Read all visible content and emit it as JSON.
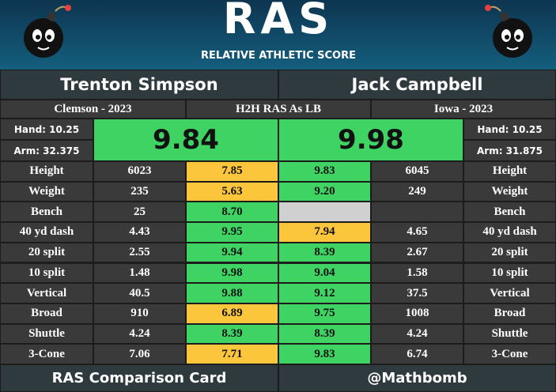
{
  "header": {
    "title": "RAS",
    "subtitle": "RELATIVE ATHLETIC SCORE"
  },
  "left": {
    "name": "Trenton Simpson",
    "school": "Clemson - 2023",
    "hand": "Hand: 10.25",
    "arm": "Arm: 32.375",
    "ras": "9.84"
  },
  "right": {
    "name": "Jack Campbell",
    "school": "Iowa - 2023",
    "hand": "Hand: 10.25",
    "arm": "Arm: 31.875",
    "ras": "9.98"
  },
  "center_label": "H2H RAS As LB",
  "colors": {
    "good": "#3fd364",
    "fair": "#fcc63c",
    "missing": "#d0d0d0"
  },
  "rows": [
    {
      "metric": "Height",
      "left_value": "6023",
      "left_score": "7.85",
      "left_grade": "fair",
      "right_score": "9.83",
      "right_grade": "good",
      "right_value": "6045"
    },
    {
      "metric": "Weight",
      "left_value": "235",
      "left_score": "5.63",
      "left_grade": "fair",
      "right_score": "9.20",
      "right_grade": "good",
      "right_value": "249"
    },
    {
      "metric": "Bench",
      "left_value": "25",
      "left_score": "8.70",
      "left_grade": "good",
      "right_score": null,
      "right_grade": "missing",
      "right_value": null
    },
    {
      "metric": "40 yd dash",
      "left_value": "4.43",
      "left_score": "9.95",
      "left_grade": "good",
      "right_score": "7.94",
      "right_grade": "fair",
      "right_value": "4.65"
    },
    {
      "metric": "20 split",
      "left_value": "2.55",
      "left_score": "9.94",
      "left_grade": "good",
      "right_score": "8.39",
      "right_grade": "good",
      "right_value": "2.67"
    },
    {
      "metric": "10 split",
      "left_value": "1.48",
      "left_score": "9.98",
      "left_grade": "good",
      "right_score": "9.04",
      "right_grade": "good",
      "right_value": "1.58"
    },
    {
      "metric": "Vertical",
      "left_value": "40.5",
      "left_score": "9.88",
      "left_grade": "good",
      "right_score": "9.12",
      "right_grade": "good",
      "right_value": "37.5"
    },
    {
      "metric": "Broad",
      "left_value": "910",
      "left_score": "6.89",
      "left_grade": "fair",
      "right_score": "9.75",
      "right_grade": "good",
      "right_value": "1008"
    },
    {
      "metric": "Shuttle",
      "left_value": "4.24",
      "left_score": "8.39",
      "left_grade": "good",
      "right_score": "8.39",
      "right_grade": "good",
      "right_value": "4.24"
    },
    {
      "metric": "3-Cone",
      "left_value": "7.06",
      "left_score": "7.71",
      "left_grade": "fair",
      "right_score": "9.83",
      "right_grade": "good",
      "right_value": "6.74"
    }
  ],
  "footer": {
    "left": "RAS Comparison Card",
    "right": "@Mathbomb"
  }
}
